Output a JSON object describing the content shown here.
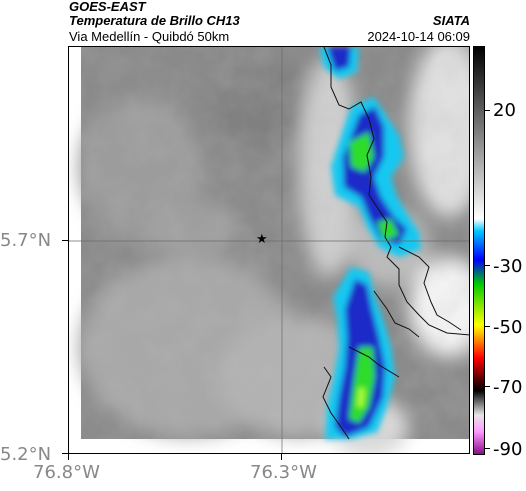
{
  "header": {
    "satellite": "GOES-EAST",
    "product": "Temperatura de Brillo CH13",
    "route": "Via Medellín - Quibdó 50km",
    "org": "SIATA",
    "timestamp": "2024-10-14 06:09"
  },
  "axes": {
    "lat_ticks": [
      "5.7°N",
      "5.2°N"
    ],
    "lon_ticks": [
      "76.8°W",
      "76.3°W"
    ]
  },
  "colorbar": {
    "ticks": [
      "20",
      "-30",
      "-50",
      "-70",
      "-90"
    ],
    "colors": [
      "#000000",
      "#ffffff",
      "#00c8ff",
      "#0000ff",
      "#00cc00",
      "#ffff00",
      "#ff0000",
      "#000000",
      "#ff99ff",
      "#800080"
    ]
  },
  "map": {
    "marker": "star-icon",
    "colors": {
      "cloud_cold": "#1a2cc8",
      "cloud_core": "#2fdc2a",
      "cloud_edge": "#18c8f0",
      "background": "#888888"
    }
  }
}
